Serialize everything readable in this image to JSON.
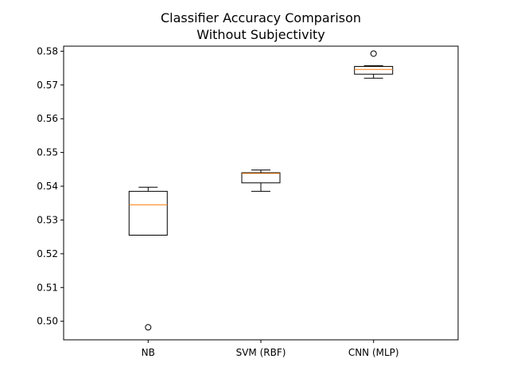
{
  "chart_data": {
    "type": "box",
    "title": "Classifier Accuracy Comparison",
    "subtitle": "Without Subjectivity",
    "xlabel": "",
    "ylabel": "",
    "ylim": [
      0.4945,
      0.5815
    ],
    "yticks": [
      "0.50",
      "0.51",
      "0.52",
      "0.53",
      "0.54",
      "0.55",
      "0.56",
      "0.57",
      "0.58"
    ],
    "ytick_values": [
      0.5,
      0.51,
      0.52,
      0.53,
      0.54,
      0.55,
      0.56,
      0.57,
      0.58
    ],
    "grid": false,
    "categories": [
      "NB",
      "SVM (RBF)",
      "CNN (MLP)"
    ],
    "boxes": [
      {
        "whisker_low": 0.5255,
        "q1": 0.5255,
        "median": 0.5345,
        "q3": 0.5385,
        "whisker_high": 0.5397,
        "outliers": [
          0.4982
        ]
      },
      {
        "whisker_low": 0.5385,
        "q1": 0.541,
        "median": 0.5438,
        "q3": 0.544,
        "whisker_high": 0.5448,
        "outliers": []
      },
      {
        "whisker_low": 0.572,
        "q1": 0.5732,
        "median": 0.5746,
        "q3": 0.5755,
        "whisker_high": 0.5757,
        "outliers": [
          0.5793
        ]
      }
    ],
    "colors": {
      "box": "#000000",
      "median": "#ff7f0e",
      "outlier_edge": "#000000"
    }
  }
}
